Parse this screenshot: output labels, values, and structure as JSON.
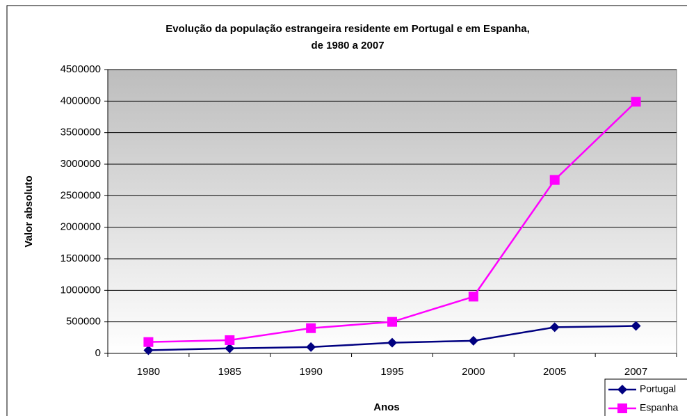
{
  "chart_data": {
    "type": "line",
    "title": [
      "Evolução da população estrangeira residente em Portugal e em Espanha,",
      "de 1980 a 2007"
    ],
    "x_label": "Anos",
    "y_label": "Valor absoluto",
    "categories": [
      "1980",
      "1985",
      "1990",
      "1995",
      "2000",
      "2005",
      "2007"
    ],
    "series": [
      {
        "name": "Portugal",
        "color": "#000080",
        "marker": "diamond",
        "values": [
          50000,
          80000,
          100000,
          170000,
          200000,
          415000,
          435000
        ]
      },
      {
        "name": "Espanha",
        "color": "#ff00ff",
        "marker": "square",
        "values": [
          180000,
          210000,
          400000,
          500000,
          900000,
          2750000,
          3990000
        ]
      }
    ],
    "ylim": [
      0,
      4500000
    ],
    "yticks": [
      0,
      500000,
      1000000,
      1500000,
      2000000,
      2500000,
      3000000,
      3500000,
      4000000,
      4500000
    ],
    "grid": true,
    "legend": "bottom-right"
  }
}
